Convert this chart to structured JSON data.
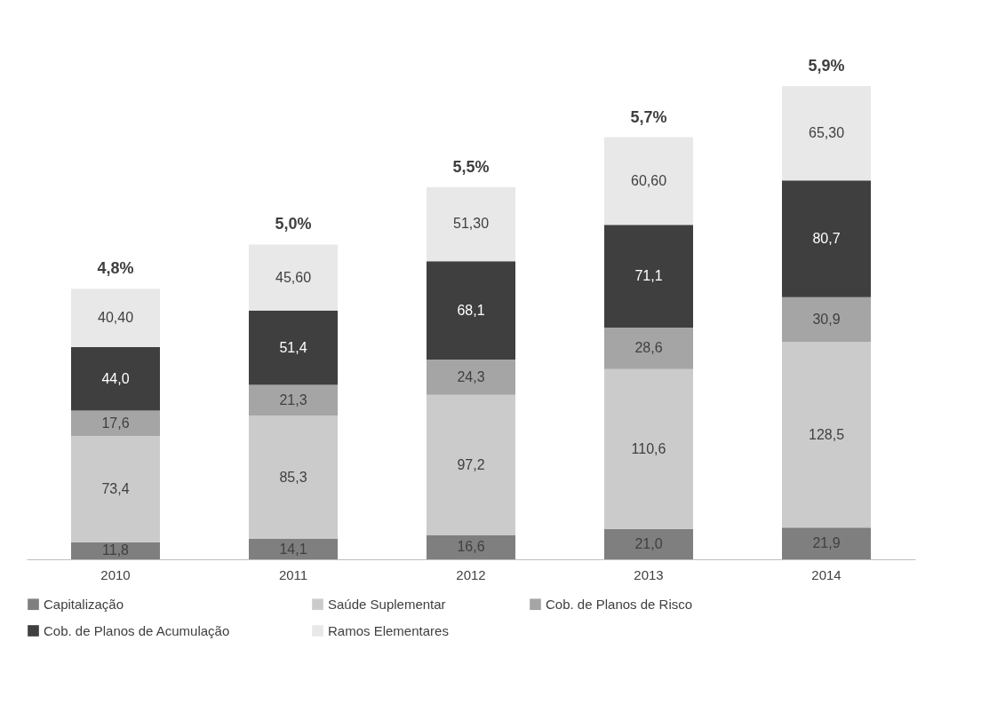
{
  "chart_data": {
    "type": "bar",
    "stacked": true,
    "categories": [
      "2010",
      "2011",
      "2012",
      "2013",
      "2014"
    ],
    "series": [
      {
        "name": "Capitalização",
        "color": "#7f7f7f",
        "values": [
          11.8,
          14.1,
          16.6,
          21.0,
          21.9
        ],
        "value_labels": [
          "11,8",
          "14,1",
          "16,6",
          "21,0",
          "21,9"
        ]
      },
      {
        "name": "Saúde Suplementar",
        "color": "#cbcbcb",
        "values": [
          73.4,
          85.3,
          97.2,
          110.6,
          128.5
        ],
        "value_labels": [
          "73,4",
          "85,3",
          "97,2",
          "110,6",
          "128,5"
        ]
      },
      {
        "name": "Cob. de Planos de Risco",
        "color": "#a5a5a5",
        "values": [
          17.6,
          21.3,
          24.3,
          28.6,
          30.9
        ],
        "value_labels": [
          "17,6",
          "21,3",
          "24,3",
          "28,6",
          "30,9"
        ]
      },
      {
        "name": "Cob. de Planos de Acumulação",
        "color": "#3f3f3f",
        "values": [
          44.0,
          51.4,
          68.1,
          71.1,
          80.7
        ],
        "value_labels": [
          "44,0",
          "51,4",
          "68,1",
          "71,1",
          "80,7"
        ]
      },
      {
        "name": "Ramos Elementares",
        "color": "#e8e8e8",
        "values": [
          40.4,
          45.6,
          51.3,
          60.6,
          65.3
        ],
        "value_labels": [
          "40,40",
          "45,60",
          "51,30",
          "60,60",
          "65,30"
        ]
      }
    ],
    "annotations": [
      {
        "text": "4,8%",
        "x": "2010",
        "y": 187.2
      },
      {
        "text": "5,0%",
        "x": "2011",
        "y": 217.7
      },
      {
        "text": "5,5%",
        "x": "2012",
        "y": 257.5
      },
      {
        "text": "5,7%",
        "x": "2013",
        "y": 291.9
      },
      {
        "text": "5,9%",
        "x": "2014",
        "y": 327.3
      }
    ],
    "legend": "bottom",
    "grid": false,
    "tick_labels": "x"
  }
}
